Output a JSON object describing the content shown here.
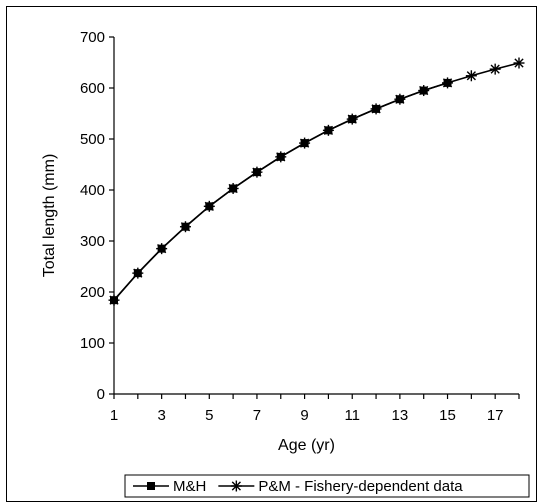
{
  "chart_data": {
    "type": "line",
    "xlabel": "Age (yr)",
    "ylabel": "Total length (mm)",
    "xlim": [
      1,
      18
    ],
    "ylim": [
      0,
      700
    ],
    "x_ticks": [
      1,
      3,
      5,
      7,
      9,
      11,
      13,
      15,
      17
    ],
    "y_ticks": [
      0,
      100,
      200,
      300,
      400,
      500,
      600,
      700
    ],
    "legend_position": "bottom",
    "grid": false,
    "series": [
      {
        "name": "M&H",
        "marker": "square",
        "color": "#000000",
        "x": [
          1,
          2,
          3,
          4,
          5,
          6,
          7,
          8,
          9,
          10,
          11,
          12,
          13,
          14,
          15
        ],
        "y": [
          184,
          237,
          285,
          328,
          368,
          403,
          435,
          465,
          492,
          517,
          539,
          559,
          578,
          595,
          610
        ]
      },
      {
        "name": "P&M - Fishery-dependent data",
        "marker": "asterisk",
        "color": "#000000",
        "x": [
          1,
          2,
          3,
          4,
          5,
          6,
          7,
          8,
          9,
          10,
          11,
          12,
          13,
          14,
          15,
          16,
          17,
          18
        ],
        "y": [
          184,
          237,
          285,
          328,
          368,
          403,
          435,
          465,
          492,
          517,
          539,
          559,
          578,
          595,
          610,
          624,
          637,
          649
        ]
      }
    ]
  }
}
